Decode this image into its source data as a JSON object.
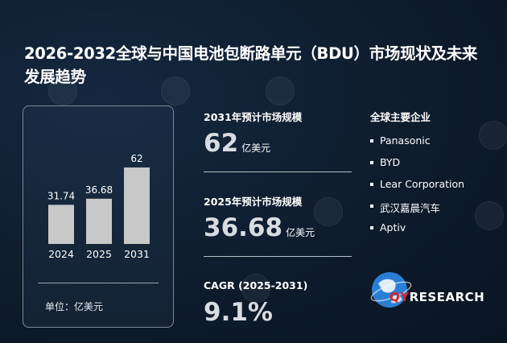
{
  "title": "2026-2032全球与中国电池包断路单元（BDU）市场现状及未来发展趋势",
  "chart_data": {
    "type": "bar",
    "categories": [
      "2024",
      "2025",
      "2031"
    ],
    "values": [
      31.74,
      36.68,
      62
    ],
    "value_labels": [
      "31.74",
      "36.68",
      "62"
    ],
    "unit_label": "单位：亿美元",
    "bar_color": "#c8c8c8",
    "ylim": [
      0,
      62
    ]
  },
  "metrics": [
    {
      "label": "2031年预计市场规模",
      "value": "62",
      "unit": "亿美元"
    },
    {
      "label": "2025年预计市场规模",
      "value": "36.68",
      "unit": "亿美元"
    },
    {
      "label": "CAGR (2025-2031)",
      "value": "9.1%",
      "unit": ""
    }
  ],
  "companies": {
    "title": "全球主要企业",
    "items": [
      "Panasonic",
      "BYD",
      "Lear Corporation",
      "武汉嘉晨汽车",
      "Aptiv"
    ]
  },
  "logo": {
    "prefix": "QY",
    "suffix": "RESEARCH",
    "icon": "globe-icon"
  },
  "colors": {
    "background": "#0e1b2b",
    "accent": "#e02020",
    "logo_blue": "#2a7fd4"
  }
}
